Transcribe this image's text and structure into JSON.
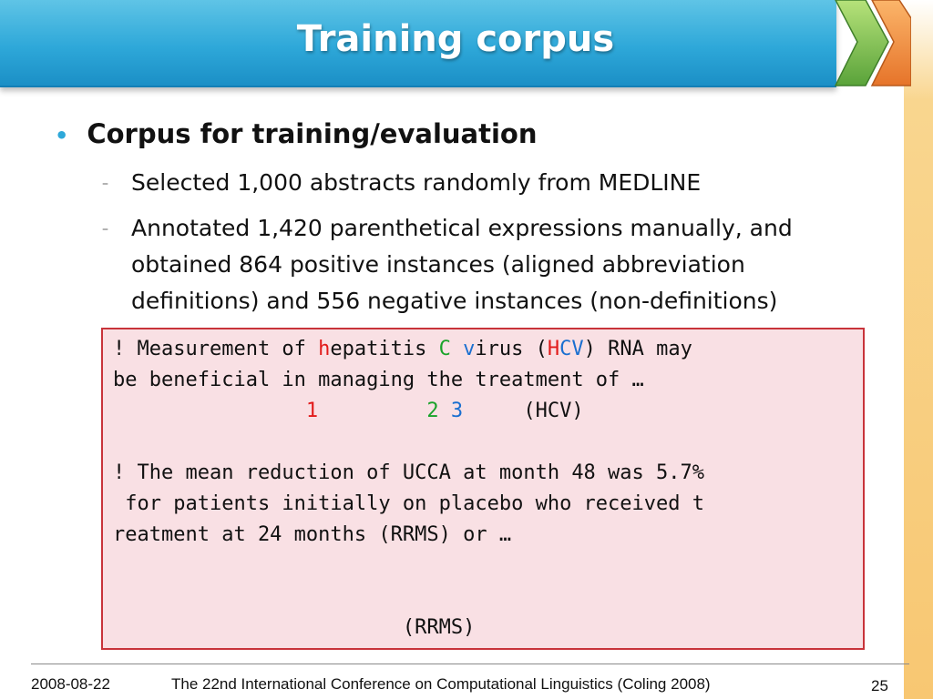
{
  "slide": {
    "title": "Training corpus",
    "bullet": "Corpus for training/evaluation",
    "sub_items": [
      "Selected 1,000 abstracts randomly from MEDLINE",
      "Annotated 1,420 parenthetical expressions manually, and obtained 864 positive instances (aligned abbreviation definitions) and 556 negative instances (non-definitions)"
    ],
    "bullet_dot": "•",
    "sub_dash": "–"
  },
  "example1": {
    "line1_prefix": "! Measurement of ",
    "h": "h",
    "line1_mid1": "epatitis ",
    "C": "C",
    "v": "v",
    "line1_mid2": "irus (",
    "H": "H",
    "CV": "CV",
    "line1_suffix": ") RNA may",
    "line2": "be beneficial in managing the treatment of …",
    "num1": "1",
    "num2": "2",
    "num3": "3",
    "abbr": "(HCV)"
  },
  "example2": {
    "line1": "! The mean reduction of UCCA at month 48 was 5.7%",
    "line2": " for patients initially on placebo who received t",
    "line3": "reatment at 24 months (RRMS) or …",
    "abbr": "(RRMS)"
  },
  "footer": {
    "date": "2008-08-22",
    "conference": "The 22nd International Conference on Computational Linguistics (Coling 2008)",
    "page": "25"
  },
  "colors": {
    "banner": "#2ea8d9",
    "box_fill": "#f9e0e4",
    "box_border": "#c8333a",
    "red": "#e21b1b",
    "green": "#1aa32a",
    "blue": "#1a6fd0"
  }
}
